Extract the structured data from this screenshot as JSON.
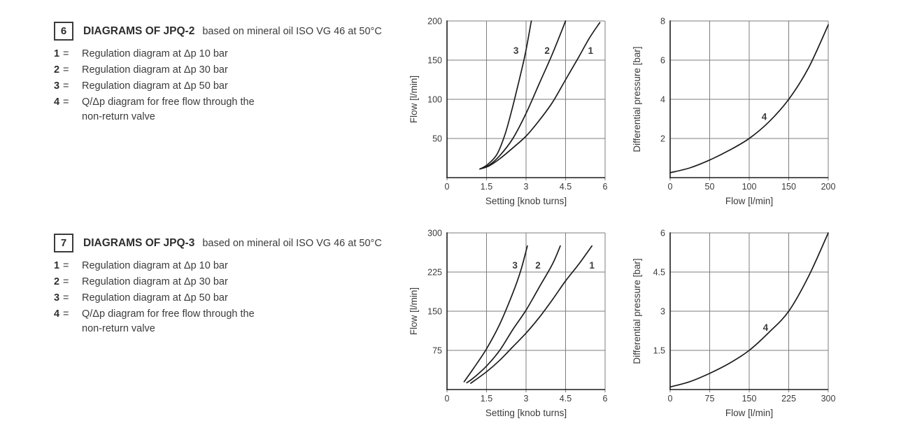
{
  "page": {
    "background": "#ffffff",
    "text_color": "#3b3b3b",
    "curve_color": "#1c1c1c",
    "grid_color": "#7d7d7d",
    "axis_color": "#1c1c1c"
  },
  "sections": [
    {
      "number": "6",
      "title": "DIAGRAMS OF JPQ-2",
      "subtitle": "based on mineral oil ISO VG 46 at 50°C",
      "legend": [
        {
          "key": "1",
          "eq": "=",
          "text": "Regulation diagram at Δp 10 bar"
        },
        {
          "key": "2",
          "eq": "=",
          "text": "Regulation diagram at Δp 30 bar"
        },
        {
          "key": "3",
          "eq": "=",
          "text": "Regulation diagram at Δp 50 bar"
        },
        {
          "key": "4",
          "eq": "=",
          "text": "Q/Δp diagram for free flow through the\nnon-return valve"
        }
      ]
    },
    {
      "number": "7",
      "title": "DIAGRAMS OF JPQ-3",
      "subtitle": "based on mineral oil ISO VG 46 at 50°C",
      "legend": [
        {
          "key": "1",
          "eq": "=",
          "text": "Regulation diagram at Δp 10 bar"
        },
        {
          "key": "2",
          "eq": "=",
          "text": "Regulation diagram at Δp 30 bar"
        },
        {
          "key": "3",
          "eq": "=",
          "text": "Regulation diagram at Δp 50 bar"
        },
        {
          "key": "4",
          "eq": "=",
          "text": "Q/Δp diagram for free flow through the\nnon-return valve"
        }
      ]
    }
  ],
  "chart_data": [
    {
      "id": "jpq2-regulation",
      "type": "line",
      "title": "",
      "xlabel": "Setting [knob turns]",
      "ylabel": "Flow [l/min]",
      "xlim": [
        0,
        6
      ],
      "ylim": [
        0,
        200
      ],
      "xticks": [
        0,
        1.5,
        3,
        4.5,
        6
      ],
      "yticks": [
        50,
        100,
        150,
        200
      ],
      "grid": true,
      "legend_position": "none",
      "series": [
        {
          "name": "3",
          "label_pos": [
            2.62,
            158
          ],
          "points": [
            [
              1.25,
              11
            ],
            [
              1.55,
              17
            ],
            [
              1.9,
              30
            ],
            [
              2.2,
              55
            ],
            [
              2.45,
              85
            ],
            [
              2.65,
              112
            ],
            [
              2.85,
              140
            ],
            [
              3.0,
              163
            ],
            [
              3.2,
              200
            ]
          ]
        },
        {
          "name": "2",
          "label_pos": [
            3.8,
            158
          ],
          "points": [
            [
              1.25,
              11
            ],
            [
              1.6,
              16
            ],
            [
              2.0,
              28
            ],
            [
              2.5,
              50
            ],
            [
              3.0,
              82
            ],
            [
              3.5,
              120
            ],
            [
              4.0,
              158
            ],
            [
              4.5,
              200
            ]
          ]
        },
        {
          "name": "1",
          "label_pos": [
            5.45,
            158
          ],
          "points": [
            [
              1.25,
              11
            ],
            [
              1.6,
              15
            ],
            [
              2.0,
              24
            ],
            [
              2.5,
              38
            ],
            [
              3.0,
              53
            ],
            [
              3.5,
              73
            ],
            [
              4.0,
              96
            ],
            [
              4.5,
              125
            ],
            [
              5.0,
              154
            ],
            [
              5.4,
              178
            ],
            [
              5.8,
              198
            ]
          ]
        }
      ]
    },
    {
      "id": "jpq2-free-flow",
      "type": "line",
      "title": "",
      "xlabel": "Flow [l/min]",
      "ylabel": "Differential pressure [bar]",
      "xlim": [
        0,
        200
      ],
      "ylim": [
        0,
        8
      ],
      "xticks": [
        0,
        50,
        100,
        150,
        200
      ],
      "yticks": [
        2,
        4,
        6,
        8
      ],
      "grid": true,
      "legend_position": "none",
      "series": [
        {
          "name": "4",
          "label_pos": [
            119,
            2.95
          ],
          "points": [
            [
              0,
              0.25
            ],
            [
              25,
              0.5
            ],
            [
              50,
              0.9
            ],
            [
              75,
              1.4
            ],
            [
              100,
              2.0
            ],
            [
              125,
              2.85
            ],
            [
              150,
              4.0
            ],
            [
              175,
              5.6
            ],
            [
              200,
              7.8
            ]
          ]
        }
      ]
    },
    {
      "id": "jpq3-regulation",
      "type": "line",
      "title": "",
      "xlabel": "Setting [knob turns]",
      "ylabel": "Flow [l/min]",
      "xlim": [
        0,
        6
      ],
      "ylim": [
        0,
        300
      ],
      "xticks": [
        0,
        1.5,
        3,
        4.5,
        6
      ],
      "yticks": [
        75,
        150,
        225,
        300
      ],
      "grid": true,
      "legend_position": "none",
      "series": [
        {
          "name": "3",
          "label_pos": [
            2.58,
            232
          ],
          "points": [
            [
              0.65,
              15
            ],
            [
              1.0,
              40
            ],
            [
              1.5,
              78
            ],
            [
              2.0,
              125
            ],
            [
              2.5,
              185
            ],
            [
              2.8,
              228
            ],
            [
              3.05,
              275
            ]
          ]
        },
        {
          "name": "2",
          "label_pos": [
            3.45,
            232
          ],
          "points": [
            [
              0.75,
              13
            ],
            [
              1.0,
              22
            ],
            [
              1.5,
              45
            ],
            [
              2.0,
              75
            ],
            [
              2.5,
              115
            ],
            [
              3.0,
              152
            ],
            [
              3.5,
              196
            ],
            [
              4.0,
              240
            ],
            [
              4.3,
              275
            ]
          ]
        },
        {
          "name": "1",
          "label_pos": [
            5.5,
            232
          ],
          "points": [
            [
              0.9,
              12
            ],
            [
              1.5,
              34
            ],
            [
              2.0,
              56
            ],
            [
              2.5,
              82
            ],
            [
              3.0,
              108
            ],
            [
              3.5,
              138
            ],
            [
              4.0,
              172
            ],
            [
              4.5,
              208
            ],
            [
              5.0,
              240
            ],
            [
              5.5,
              275
            ]
          ]
        }
      ]
    },
    {
      "id": "jpq3-free-flow",
      "type": "line",
      "title": "",
      "xlabel": "Flow [l/min]",
      "ylabel": "Differential pressure [bar]",
      "xlim": [
        0,
        300
      ],
      "ylim": [
        0,
        6
      ],
      "xticks": [
        0,
        75,
        150,
        225,
        300
      ],
      "yticks": [
        1.5,
        3,
        4.5,
        6
      ],
      "grid": true,
      "legend_position": "none",
      "series": [
        {
          "name": "4",
          "label_pos": [
            181,
            2.25
          ],
          "points": [
            [
              0,
              0.1
            ],
            [
              37,
              0.3
            ],
            [
              75,
              0.62
            ],
            [
              112,
              1.0
            ],
            [
              150,
              1.5
            ],
            [
              188,
              2.2
            ],
            [
              225,
              3.0
            ],
            [
              263,
              4.35
            ],
            [
              300,
              6.0
            ]
          ]
        }
      ]
    }
  ]
}
